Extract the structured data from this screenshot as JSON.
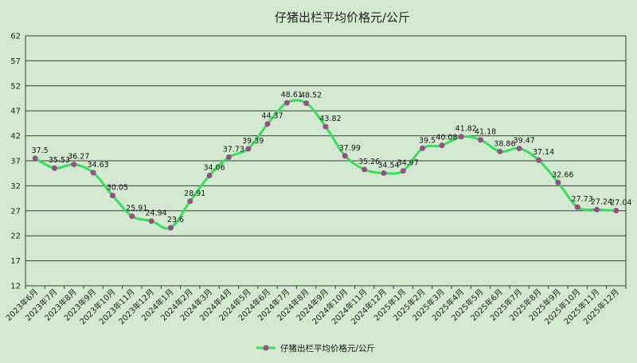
{
  "chart_data": {
    "type": "line",
    "title": "仔猪出栏平均价格元/公斤",
    "xlabel": "",
    "ylabel": "",
    "ylim": [
      12,
      62
    ],
    "yticks": [
      12,
      17,
      22,
      27,
      32,
      37,
      42,
      47,
      52,
      57,
      62
    ],
    "grid": true,
    "legend_position": "bottom",
    "categories": [
      "2023年6月",
      "2023年7月",
      "2023年8月",
      "2023年9月",
      "2023年10月",
      "2023年11月",
      "2023年12月",
      "2024年1月",
      "2024年2月",
      "2024年3月",
      "2024年4月",
      "2024年5月",
      "2024年6月",
      "2024年7月",
      "2024年8月",
      "2024年9月",
      "2024年10月",
      "2024年11月",
      "2024年12月",
      "2025年1月",
      "2025年2月",
      "2025年3月",
      "2025年4月",
      "2025年5月",
      "2025年6月",
      "2025年7月",
      "2025年8月",
      "2025年9月",
      "2025年10月",
      "2025年11月",
      "2025年12月"
    ],
    "series": [
      {
        "name": "仔猪出栏平均价格元/公斤",
        "values": [
          37.5,
          35.53,
          36.27,
          34.63,
          30.05,
          25.91,
          24.94,
          23.6,
          28.91,
          34.06,
          37.73,
          39.39,
          44.37,
          48.61,
          48.52,
          43.82,
          37.99,
          35.26,
          34.54,
          34.97,
          39.5,
          40.08,
          41.82,
          41.18,
          38.86,
          39.47,
          37.14,
          32.66,
          27.73,
          27.24,
          27.04
        ],
        "labels": [
          "37.5",
          "35.53",
          "36.27",
          "34.63",
          "30.05",
          "25.91",
          "24.94",
          "23.6",
          "28.91",
          "34.06",
          "37.73",
          "39.39",
          "44.37",
          "48.61",
          "48.52",
          "43.82",
          "37.99",
          "35.26",
          "34.54",
          "34.97",
          "39.5",
          "40.08",
          "41.82",
          "41.18",
          "38.86",
          "39.47",
          "37.14",
          "32.66",
          "27.73",
          "27.24",
          "27.04"
        ],
        "line_color": "#33e05a",
        "marker_color": "#9b4b87"
      }
    ]
  }
}
